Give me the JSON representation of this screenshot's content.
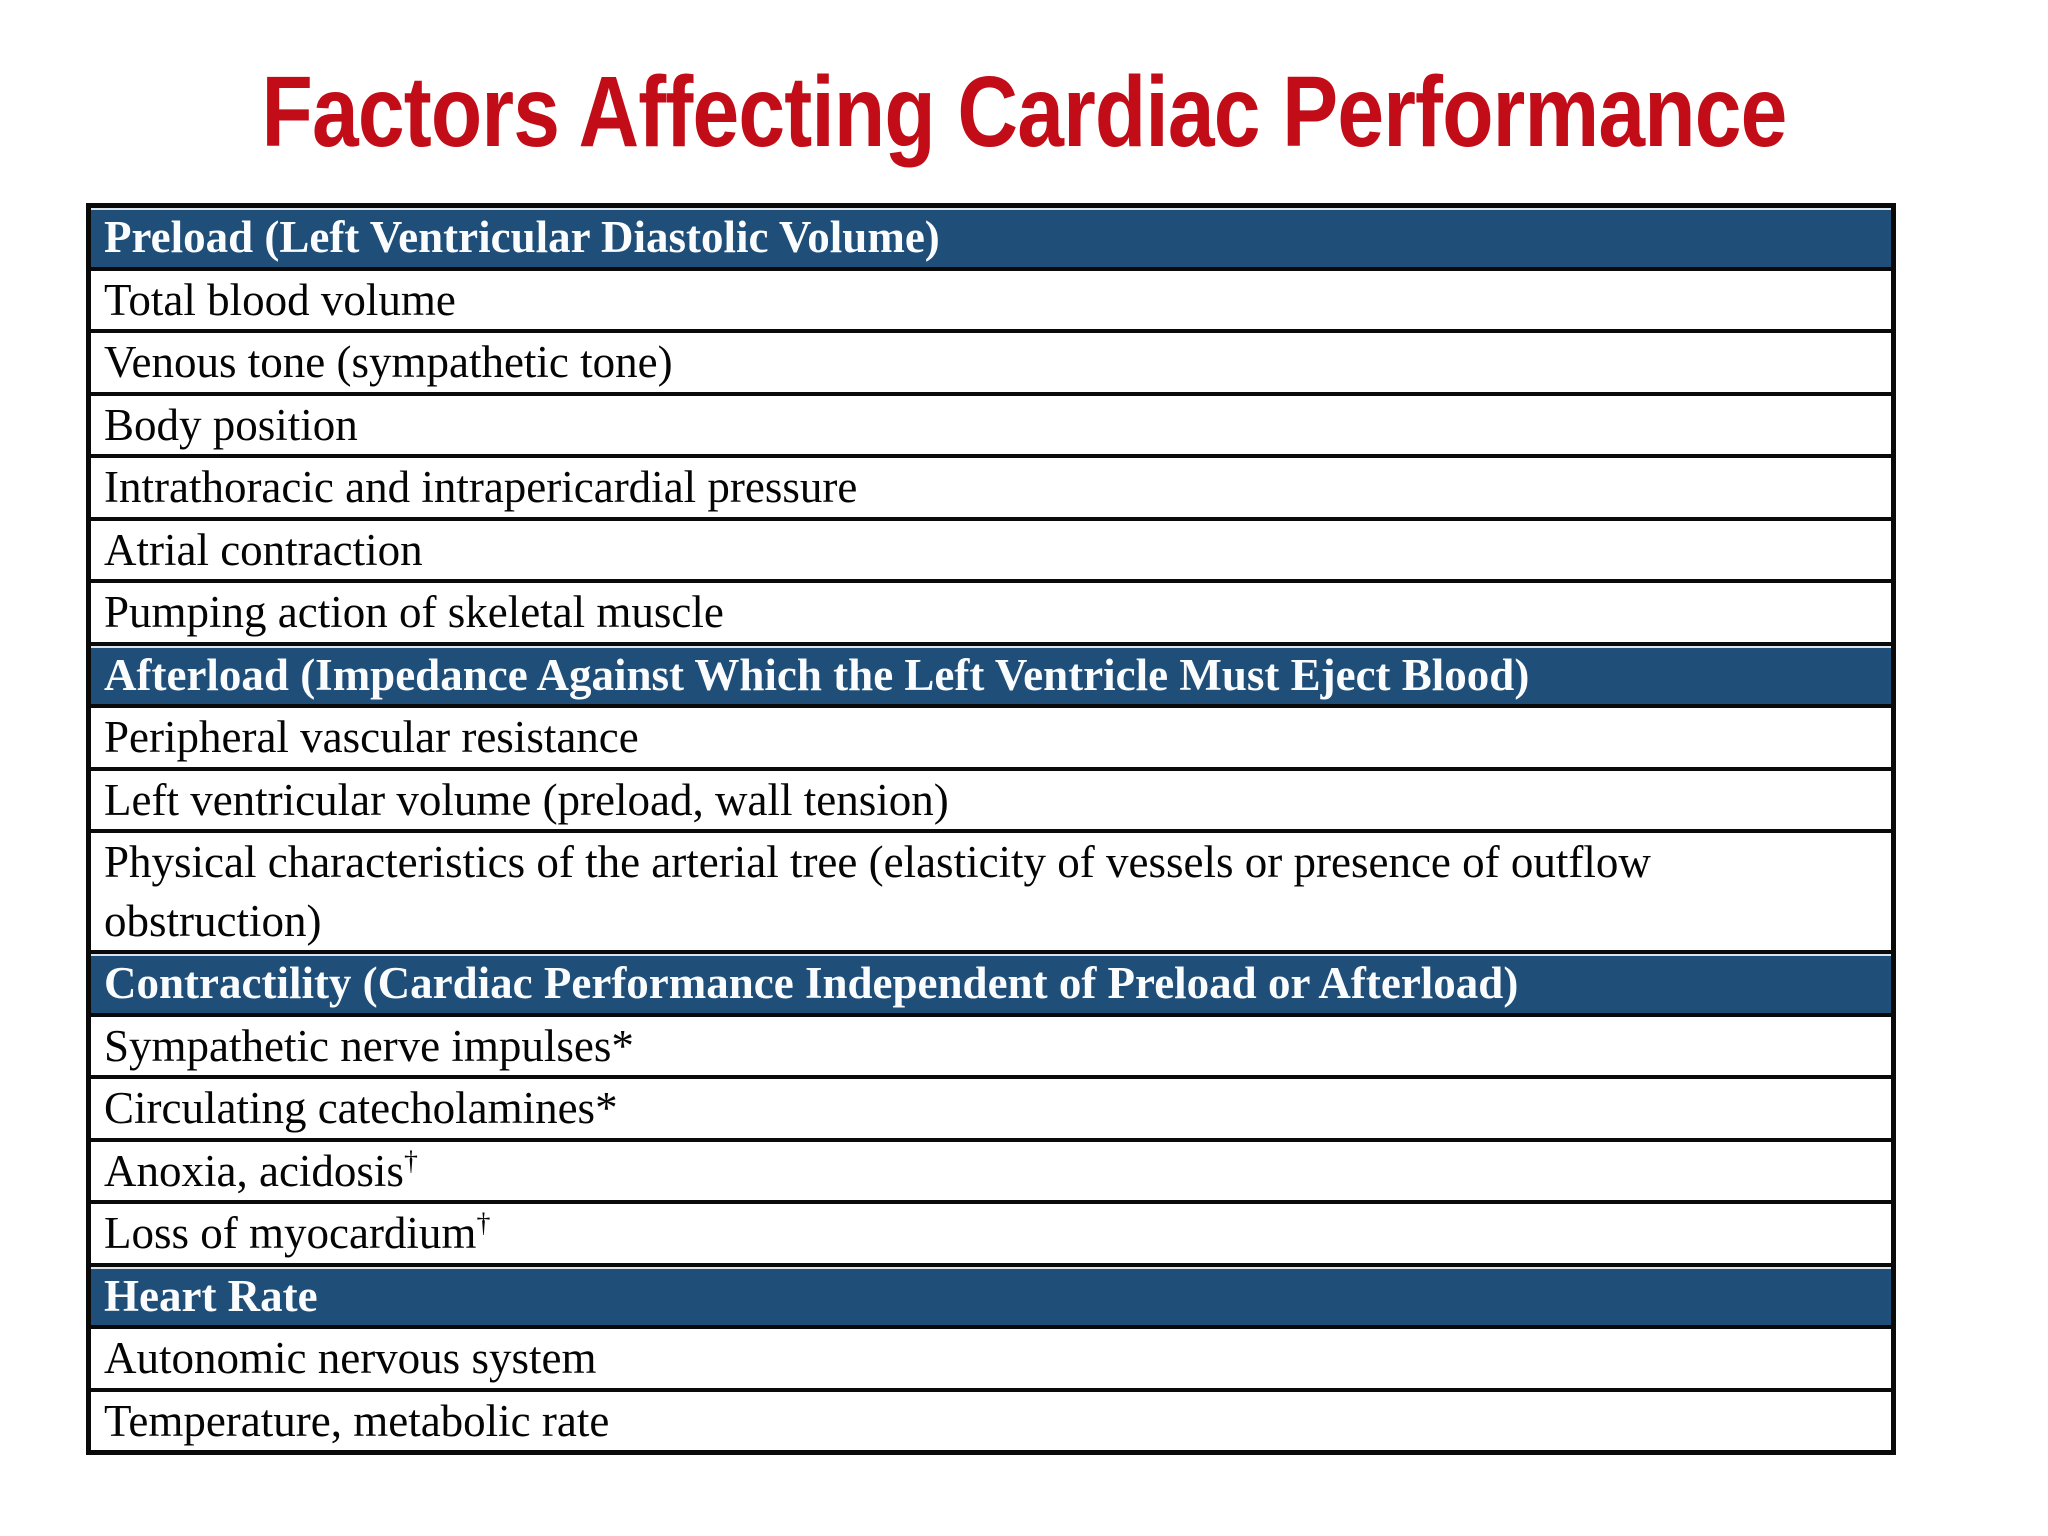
{
  "title": {
    "text": "Factors Affecting Cardiac Performance",
    "color": "#C20D18"
  },
  "table": {
    "header_bg": "#1F4E79",
    "header_text_color": "#FBFCFE",
    "border_color": "#0A0A0A",
    "body_text_color": "#050505",
    "sections": [
      {
        "header": "Preload (Left Ventricular Diastolic Volume)",
        "rows": [
          {
            "label": "Total blood volume",
            "note": "",
            "note_superscript": false
          },
          {
            "label": "Venous tone (sympathetic tone)",
            "note": "",
            "note_superscript": false
          },
          {
            "label": "Body position",
            "note": "",
            "note_superscript": false
          },
          {
            "label": "Intrathoracic and intrapericardial pressure",
            "note": "",
            "note_superscript": false
          },
          {
            "label": "Atrial contraction",
            "note": "",
            "note_superscript": false
          },
          {
            "label": "Pumping action of skeletal muscle",
            "note": "",
            "note_superscript": false
          }
        ]
      },
      {
        "header": "Afterload (Impedance Against Which the Left Ventricle Must Eject Blood)",
        "rows": [
          {
            "label": "Peripheral vascular resistance",
            "note": "",
            "note_superscript": false
          },
          {
            "label": "Left ventricular volume (preload, wall tension)",
            "note": "",
            "note_superscript": false
          },
          {
            "label": "Physical characteristics of the arterial tree (elasticity of vessels or presence of outflow obstruction)",
            "note": "",
            "note_superscript": false
          }
        ]
      },
      {
        "header": "Contractility (Cardiac Performance Independent of Preload or Afterload)",
        "rows": [
          {
            "label": "Sympathetic nerve impulses",
            "note": "*",
            "note_superscript": false
          },
          {
            "label": "Circulating catecholamines",
            "note": "*",
            "note_superscript": false
          },
          {
            "label": "Anoxia, acidosis",
            "note": "†",
            "note_superscript": true
          },
          {
            "label": "Loss of myocardium",
            "note": "†",
            "note_superscript": true
          }
        ]
      },
      {
        "header": "Heart Rate",
        "rows": [
          {
            "label": "Autonomic nervous system",
            "note": "",
            "note_superscript": false
          },
          {
            "label": "Temperature, metabolic rate",
            "note": "",
            "note_superscript": false
          }
        ]
      }
    ]
  }
}
